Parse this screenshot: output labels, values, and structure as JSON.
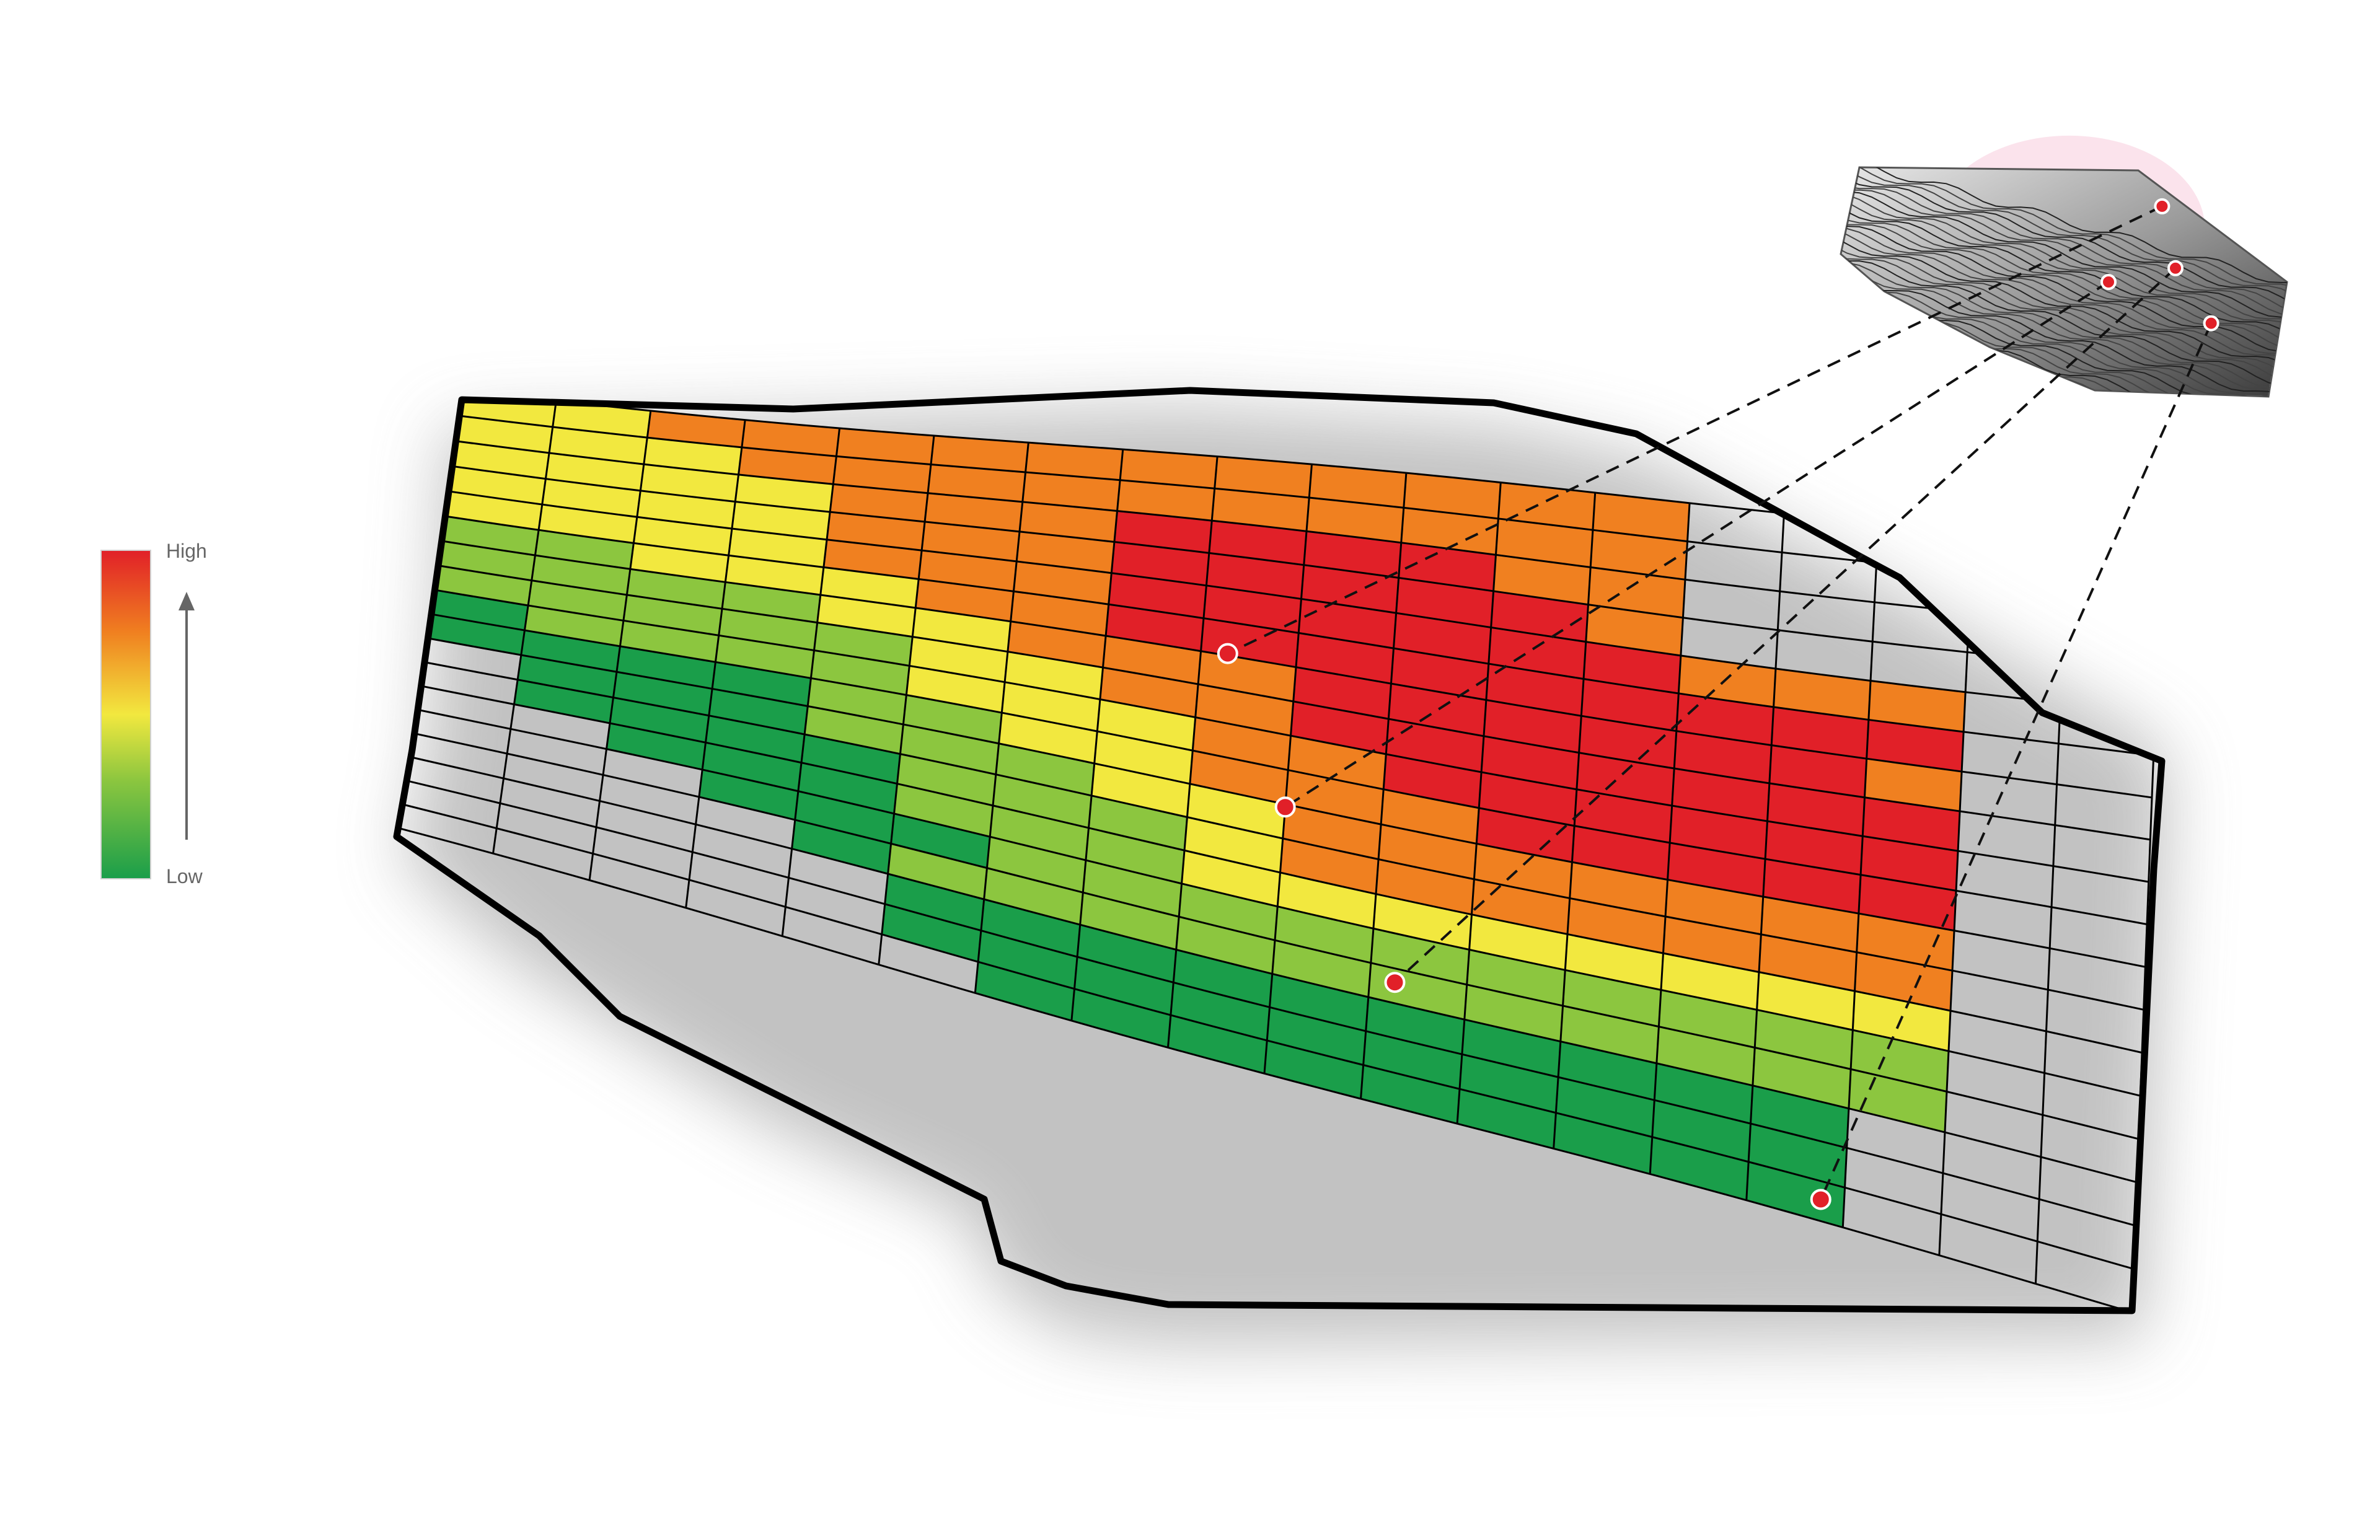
{
  "legend": {
    "high_label": "High",
    "low_label": "Low",
    "colors": [
      "#1a9e4a",
      "#8cc63f",
      "#f2e83f",
      "#f08020",
      "#e12028"
    ]
  },
  "grid": {
    "cols": 18,
    "rows": 18,
    "levels": [
      "2233333333333xxxxx",
      "2223333333333xxxxx",
      "2222333444433xxxxx",
      "2222333444443xxxxx",
      "2222333444444333xx",
      "1122233444444444xx",
      "1111223334444443xx",
      "1111122334444444xx",
      "0111122233444444xx",
      "0000112233344444xx",
      "x000111223333333xx",
      "x000011123333333xx",
      "xx00011122222222xx",
      "xxx0001111111111xx",
      "xxxx011111111111xx",
      "xxxxx0000000000xxx",
      "xxxxx0000000000xxx",
      "xxxxxx000000000xxx"
    ]
  },
  "markers": [
    {
      "u": 0.72,
      "v": 0.17,
      "tu": 0.46,
      "tv": 0.33
    },
    {
      "u": 0.6,
      "v": 0.5,
      "tu": 0.5,
      "tv": 0.56
    },
    {
      "u": 0.75,
      "v": 0.44,
      "tu": 0.57,
      "tv": 0.8
    },
    {
      "u": 0.83,
      "v": 0.68,
      "tu": 0.82,
      "tv": 0.97
    }
  ],
  "inset": {
    "shape": "terrain-contour-3d",
    "bubble_color": "#fbe3ec"
  }
}
